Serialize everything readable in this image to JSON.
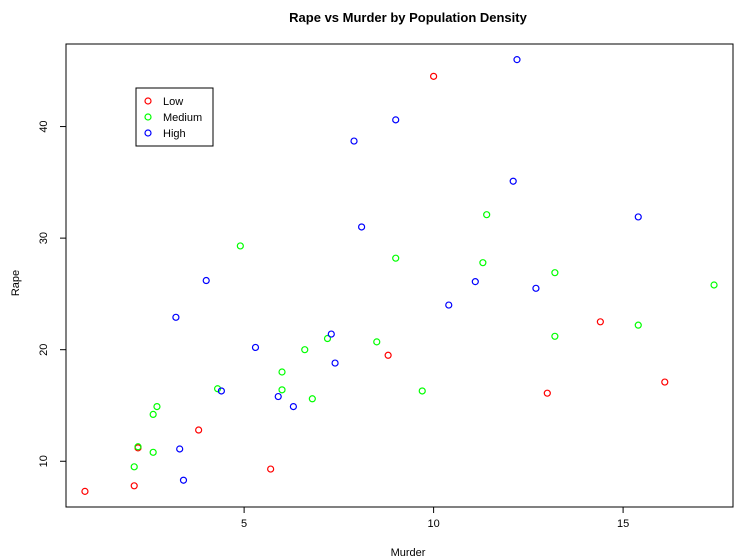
{
  "chart_data": {
    "type": "scatter",
    "title": "Rape vs Murder by Population Density",
    "xlabel": "Murder",
    "ylabel": "Rape",
    "xlim": [
      0.3,
      17.9
    ],
    "ylim": [
      5.9,
      47.4
    ],
    "xticks": [
      5,
      10,
      15
    ],
    "yticks": [
      10,
      20,
      30,
      40
    ],
    "grid": false,
    "legend_position": "top-left",
    "series": [
      {
        "name": "Low",
        "color": "#ff0000",
        "points": [
          [
            0.8,
            7.3
          ],
          [
            2.1,
            7.8
          ],
          [
            2.2,
            11.2
          ],
          [
            3.8,
            12.8
          ],
          [
            5.7,
            9.3
          ],
          [
            8.8,
            19.5
          ],
          [
            10.0,
            44.5
          ],
          [
            13.0,
            16.1
          ],
          [
            14.4,
            22.5
          ],
          [
            16.1,
            17.1
          ]
        ]
      },
      {
        "name": "Medium",
        "color": "#00ff00",
        "points": [
          [
            2.1,
            9.5
          ],
          [
            2.2,
            11.3
          ],
          [
            2.6,
            10.8
          ],
          [
            2.6,
            14.2
          ],
          [
            2.7,
            14.9
          ],
          [
            4.3,
            16.5
          ],
          [
            4.9,
            29.3
          ],
          [
            6.0,
            18.0
          ],
          [
            6.0,
            16.4
          ],
          [
            6.6,
            20.0
          ],
          [
            6.8,
            15.6
          ],
          [
            7.2,
            21.0
          ],
          [
            8.5,
            20.7
          ],
          [
            9.0,
            28.2
          ],
          [
            9.7,
            16.3
          ],
          [
            11.3,
            27.8
          ],
          [
            11.4,
            32.1
          ],
          [
            13.2,
            26.9
          ],
          [
            13.2,
            21.2
          ],
          [
            15.4,
            22.2
          ],
          [
            17.4,
            25.8
          ]
        ]
      },
      {
        "name": "High",
        "color": "#0000ff",
        "points": [
          [
            3.2,
            22.9
          ],
          [
            3.3,
            11.1
          ],
          [
            3.4,
            8.3
          ],
          [
            4.0,
            26.2
          ],
          [
            4.4,
            16.3
          ],
          [
            5.3,
            20.2
          ],
          [
            5.9,
            15.8
          ],
          [
            6.3,
            14.9
          ],
          [
            7.3,
            21.4
          ],
          [
            7.4,
            18.8
          ],
          [
            7.9,
            38.7
          ],
          [
            8.1,
            31.0
          ],
          [
            9.0,
            40.6
          ],
          [
            10.4,
            24.0
          ],
          [
            11.1,
            26.1
          ],
          [
            12.1,
            35.1
          ],
          [
            12.2,
            46.0
          ],
          [
            12.7,
            25.5
          ],
          [
            15.4,
            31.9
          ]
        ]
      }
    ]
  }
}
